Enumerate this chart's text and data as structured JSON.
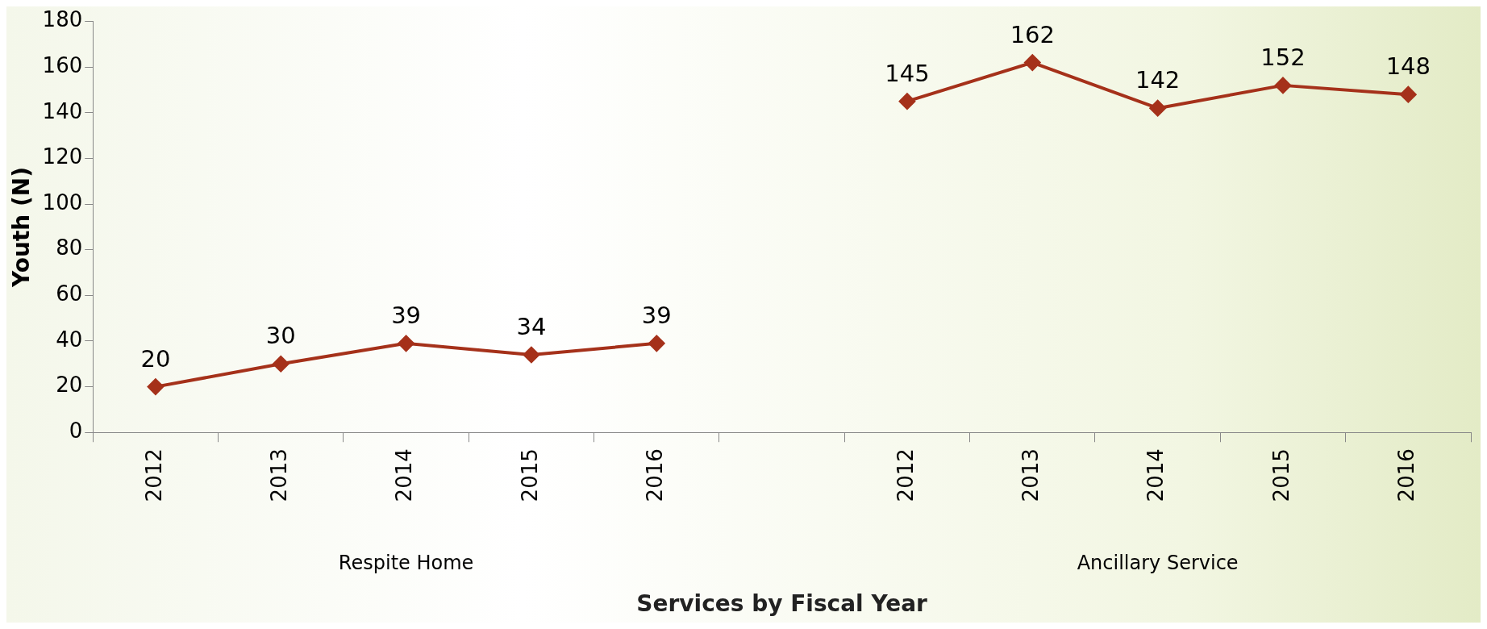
{
  "chart_data": {
    "type": "line",
    "xlabel": "Services by Fiscal Year",
    "ylabel": "Youth (N)",
    "categories": [
      "2012",
      "2013",
      "2014",
      "2015",
      "2016",
      null,
      "2012",
      "2013",
      "2014",
      "2015",
      "2016"
    ],
    "series": [
      {
        "color": "#a5311a",
        "values": [
          20,
          30,
          39,
          34,
          39,
          null,
          145,
          162,
          142,
          152,
          148
        ]
      }
    ],
    "ylim": [
      0,
      180
    ],
    "yticks": [
      0,
      20,
      40,
      60,
      80,
      100,
      120,
      140,
      160,
      180
    ],
    "annotations": [
      "Respite Home",
      "Ancillary Service"
    ],
    "data_labels": true,
    "grid": false,
    "legend": false,
    "marker": "diamond",
    "line_style": "solid"
  }
}
